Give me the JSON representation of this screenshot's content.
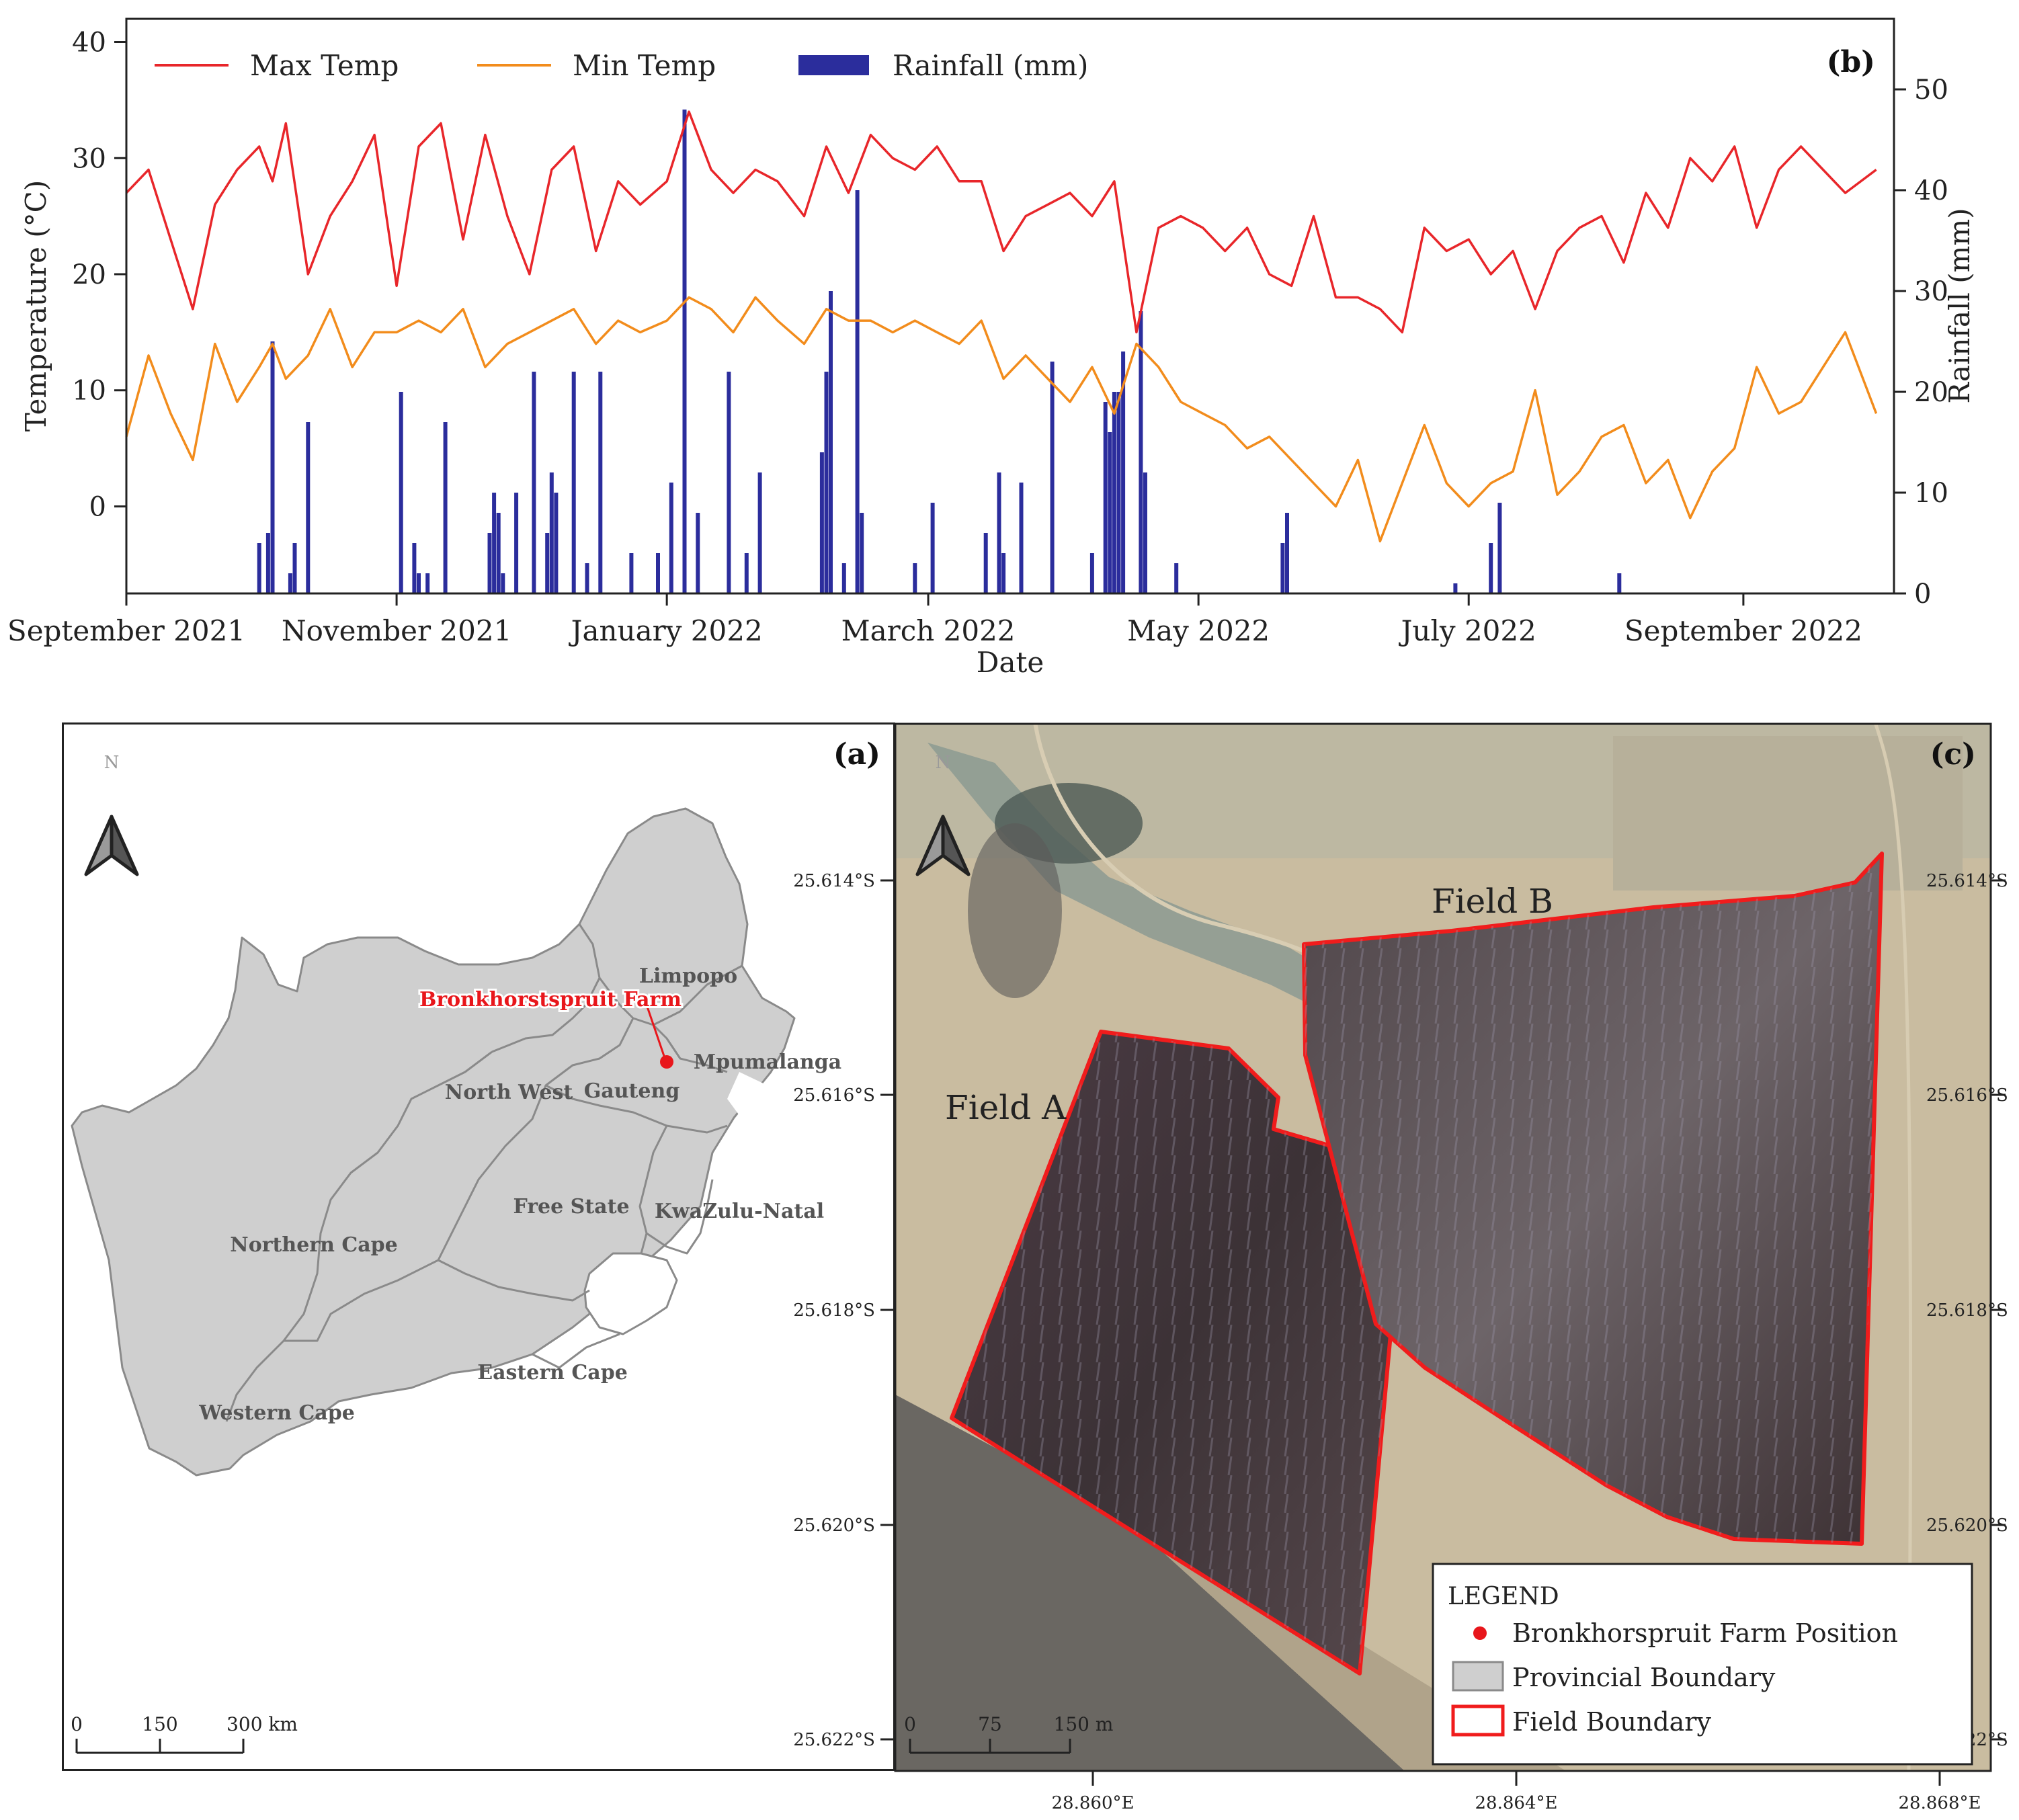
{
  "chart_data": {
    "type": "line",
    "panel_label": "(b)",
    "xlabel": "Date",
    "ylabel_left": "Temperature (°C)",
    "ylabel_right": "Rainfall (mm)",
    "ylim_left": [
      -7.5,
      42
    ],
    "ylim_right": [
      0,
      57
    ],
    "yticks_left": [
      "0",
      "10",
      "20",
      "30",
      "40"
    ],
    "yticks_right": [
      "0",
      "10",
      "20",
      "30",
      "40",
      "50"
    ],
    "xtick_labels": [
      "September 2021",
      "November 2021",
      "January 2022",
      "March 2022",
      "May 2022",
      "July 2022",
      "September 2022"
    ],
    "xtick_dates": [
      "2021-09-01",
      "2021-11-01",
      "2022-01-01",
      "2022-03-01",
      "2022-05-01",
      "2022-07-01",
      "2022-09-01"
    ],
    "x_range": [
      "2021-09-01",
      "2022-10-05"
    ],
    "legend_position": "top-left",
    "legend": [
      "Max Temp",
      "Min Temp",
      "Rainfall (mm)"
    ],
    "colors": {
      "max": "#e8262a",
      "min": "#f28c1c",
      "rain": "#2b2d9c"
    },
    "series": [
      {
        "name": "Max Temp",
        "dates": [
          "2021-09-01",
          "2021-09-06",
          "2021-09-11",
          "2021-09-16",
          "2021-09-21",
          "2021-09-26",
          "2021-10-01",
          "2021-10-04",
          "2021-10-07",
          "2021-10-12",
          "2021-10-17",
          "2021-10-22",
          "2021-10-27",
          "2021-11-01",
          "2021-11-06",
          "2021-11-11",
          "2021-11-16",
          "2021-11-21",
          "2021-11-26",
          "2021-12-01",
          "2021-12-06",
          "2021-12-11",
          "2021-12-16",
          "2021-12-21",
          "2021-12-26",
          "2022-01-01",
          "2022-01-06",
          "2022-01-11",
          "2022-01-16",
          "2022-01-21",
          "2022-01-26",
          "2022-02-01",
          "2022-02-06",
          "2022-02-11",
          "2022-02-16",
          "2022-02-21",
          "2022-02-26",
          "2022-03-03",
          "2022-03-08",
          "2022-03-13",
          "2022-03-18",
          "2022-03-23",
          "2022-03-28",
          "2022-04-02",
          "2022-04-07",
          "2022-04-12",
          "2022-04-17",
          "2022-04-22",
          "2022-04-27",
          "2022-05-02",
          "2022-05-07",
          "2022-05-12",
          "2022-05-17",
          "2022-05-22",
          "2022-05-27",
          "2022-06-01",
          "2022-06-06",
          "2022-06-11",
          "2022-06-16",
          "2022-06-21",
          "2022-06-26",
          "2022-07-01",
          "2022-07-06",
          "2022-07-11",
          "2022-07-16",
          "2022-07-21",
          "2022-07-26",
          "2022-07-31",
          "2022-08-05",
          "2022-08-10",
          "2022-08-15",
          "2022-08-20",
          "2022-08-25",
          "2022-08-30",
          "2022-09-04",
          "2022-09-09",
          "2022-09-14",
          "2022-09-19",
          "2022-09-24",
          "2022-10-01"
        ],
        "values": [
          27,
          29,
          23,
          17,
          26,
          29,
          31,
          28,
          33,
          20,
          25,
          28,
          32,
          19,
          31,
          33,
          23,
          32,
          25,
          20,
          29,
          31,
          22,
          28,
          26,
          28,
          34,
          29,
          27,
          29,
          28,
          25,
          31,
          27,
          32,
          30,
          29,
          31,
          28,
          28,
          22,
          25,
          26,
          27,
          25,
          28,
          15,
          24,
          25,
          24,
          22,
          24,
          20,
          19,
          25,
          18,
          18,
          17,
          15,
          24,
          22,
          23,
          20,
          22,
          17,
          22,
          24,
          25,
          21,
          27,
          24,
          30,
          28,
          31,
          24,
          29,
          31,
          29,
          27,
          29
        ]
      },
      {
        "name": "Min Temp",
        "dates": [
          "2021-09-01",
          "2021-09-06",
          "2021-09-11",
          "2021-09-16",
          "2021-09-21",
          "2021-09-26",
          "2021-10-01",
          "2021-10-04",
          "2021-10-07",
          "2021-10-12",
          "2021-10-17",
          "2021-10-22",
          "2021-10-27",
          "2021-11-01",
          "2021-11-06",
          "2021-11-11",
          "2021-11-16",
          "2021-11-21",
          "2021-11-26",
          "2021-12-01",
          "2021-12-06",
          "2021-12-11",
          "2021-12-16",
          "2021-12-21",
          "2021-12-26",
          "2022-01-01",
          "2022-01-06",
          "2022-01-11",
          "2022-01-16",
          "2022-01-21",
          "2022-01-26",
          "2022-02-01",
          "2022-02-06",
          "2022-02-11",
          "2022-02-16",
          "2022-02-21",
          "2022-02-26",
          "2022-03-03",
          "2022-03-08",
          "2022-03-13",
          "2022-03-18",
          "2022-03-23",
          "2022-03-28",
          "2022-04-02",
          "2022-04-07",
          "2022-04-12",
          "2022-04-17",
          "2022-04-22",
          "2022-04-27",
          "2022-05-02",
          "2022-05-07",
          "2022-05-12",
          "2022-05-17",
          "2022-05-22",
          "2022-05-27",
          "2022-06-01",
          "2022-06-06",
          "2022-06-11",
          "2022-06-16",
          "2022-06-21",
          "2022-06-26",
          "2022-07-01",
          "2022-07-06",
          "2022-07-11",
          "2022-07-16",
          "2022-07-21",
          "2022-07-26",
          "2022-07-31",
          "2022-08-05",
          "2022-08-10",
          "2022-08-15",
          "2022-08-20",
          "2022-08-25",
          "2022-08-30",
          "2022-09-04",
          "2022-09-09",
          "2022-09-14",
          "2022-09-19",
          "2022-09-24",
          "2022-10-01"
        ],
        "values": [
          6,
          13,
          8,
          4,
          14,
          9,
          12,
          14,
          11,
          13,
          17,
          12,
          15,
          15,
          16,
          15,
          17,
          12,
          14,
          15,
          16,
          17,
          14,
          16,
          15,
          16,
          18,
          17,
          15,
          18,
          16,
          14,
          17,
          16,
          16,
          15,
          16,
          15,
          14,
          16,
          11,
          13,
          11,
          9,
          12,
          8,
          14,
          12,
          9,
          8,
          7,
          5,
          6,
          4,
          2,
          0,
          4,
          -3,
          2,
          7,
          2,
          0,
          2,
          3,
          10,
          1,
          3,
          6,
          7,
          2,
          4,
          -1,
          3,
          5,
          12,
          8,
          9,
          12,
          15,
          8
        ]
      },
      {
        "name": "Rainfall (mm)",
        "style": "bar",
        "dates": [
          "2021-10-01",
          "2021-10-03",
          "2021-10-04",
          "2021-10-08",
          "2021-10-09",
          "2021-10-12",
          "2021-11-02",
          "2021-11-05",
          "2021-11-06",
          "2021-11-08",
          "2021-11-12",
          "2021-11-22",
          "2021-11-23",
          "2021-11-24",
          "2021-11-25",
          "2021-11-28",
          "2021-12-02",
          "2021-12-05",
          "2021-12-06",
          "2021-12-07",
          "2021-12-11",
          "2021-12-14",
          "2021-12-17",
          "2021-12-24",
          "2021-12-30",
          "2022-01-02",
          "2022-01-05",
          "2022-01-08",
          "2022-01-15",
          "2022-01-19",
          "2022-01-22",
          "2022-02-05",
          "2022-02-06",
          "2022-02-07",
          "2022-02-10",
          "2022-02-13",
          "2022-02-14",
          "2022-02-26",
          "2022-03-02",
          "2022-03-14",
          "2022-03-17",
          "2022-03-18",
          "2022-03-22",
          "2022-03-29",
          "2022-04-07",
          "2022-04-10",
          "2022-04-11",
          "2022-04-12",
          "2022-04-13",
          "2022-04-14",
          "2022-04-18",
          "2022-04-19",
          "2022-04-26",
          "2022-05-20",
          "2022-05-21",
          "2022-06-28",
          "2022-07-06",
          "2022-07-08",
          "2022-08-04"
        ],
        "values": [
          5,
          6,
          25,
          2,
          5,
          17,
          20,
          5,
          2,
          2,
          17,
          6,
          10,
          8,
          2,
          10,
          22,
          6,
          12,
          10,
          22,
          3,
          22,
          4,
          4,
          11,
          48,
          8,
          22,
          4,
          12,
          14,
          22,
          30,
          3,
          40,
          8,
          3,
          9,
          6,
          12,
          4,
          11,
          23,
          4,
          19,
          16,
          20,
          20,
          24,
          28,
          12,
          3,
          5,
          8,
          1,
          5,
          9,
          2
        ]
      }
    ]
  },
  "panel_a": {
    "label": "(a)",
    "north": "N",
    "provinces": [
      "Limpopo",
      "Mpumalanga",
      "North West",
      "Gauteng",
      "Free State",
      "KwaZulu-Natal",
      "Northern Cape",
      "Eastern Cape",
      "Western Cape"
    ],
    "farm_label": "Bronkhorstspruit Farm",
    "scale_ticks": [
      "0",
      "150",
      "300 km"
    ],
    "colors": {
      "land": "#cfcfcf",
      "border": "#8a8a8a",
      "farm": "#e8161b"
    }
  },
  "panel_c": {
    "label": "(c)",
    "north": "N",
    "field_a": "Field A",
    "field_b": "Field B",
    "lat_labels": [
      "25.614°S",
      "25.616°S",
      "25.618°S",
      "25.620°S",
      "25.622°S"
    ],
    "lon_labels": [
      "28.860°E",
      "28.864°E",
      "28.868°E"
    ],
    "scale_ticks": [
      "0",
      "75",
      "150 m"
    ],
    "legend": {
      "title": "LEGEND",
      "items": [
        "Bronkhorspruit Farm Position",
        "Provincial Boundary",
        "Field Boundary"
      ]
    },
    "colors": {
      "field_boundary": "#f01c1c"
    }
  }
}
